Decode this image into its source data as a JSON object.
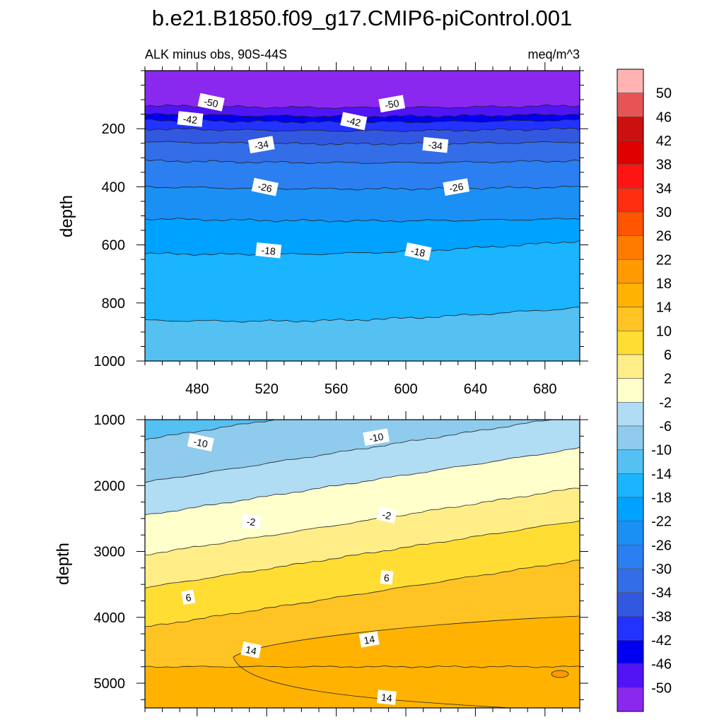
{
  "title": "b.e21.B1850.f09_g17.CMIP6-piControl.001",
  "chart_data": [
    {
      "type": "contour",
      "panel": "upper",
      "left_label": "ALK minus obs, 90S-44S",
      "right_label": "meq/m^3",
      "ylabel": "depth",
      "xlabel": "",
      "xlim": [
        450,
        700
      ],
      "ylim": [
        0,
        1000
      ],
      "y_inverted": true,
      "xticks": [
        480,
        520,
        560,
        600,
        640,
        680
      ],
      "yticks": [
        200,
        400,
        600,
        800,
        1000
      ],
      "contours": [
        {
          "level": -50,
          "depth": 120
        },
        {
          "level": -46,
          "depth": 150
        },
        {
          "level": -42,
          "depth": 170
        },
        {
          "level": -38,
          "depth": 200
        },
        {
          "level": -34,
          "depth": 245
        },
        {
          "level": -30,
          "depth": 310
        },
        {
          "level": -26,
          "depth": 400
        },
        {
          "level": -22,
          "depth": 510
        },
        {
          "level": -18,
          "depth": 630
        },
        {
          "level": -14,
          "depth": 860
        }
      ],
      "labels": [
        {
          "text": "-50",
          "x": 488,
          "y": 110
        },
        {
          "text": "-50",
          "x": 592,
          "y": 115
        },
        {
          "text": "-42",
          "x": 476,
          "y": 168
        },
        {
          "text": "-42",
          "x": 570,
          "y": 175
        },
        {
          "text": "-34",
          "x": 517,
          "y": 256
        },
        {
          "text": "-34",
          "x": 617,
          "y": 257
        },
        {
          "text": "-26",
          "x": 519,
          "y": 402
        },
        {
          "text": "-26",
          "x": 629,
          "y": 402
        },
        {
          "text": "-18",
          "x": 521,
          "y": 620
        },
        {
          "text": "-18",
          "x": 607,
          "y": 624
        }
      ]
    },
    {
      "type": "contour",
      "panel": "lower",
      "ylabel": "depth",
      "xlabel": "",
      "xlim": [
        450,
        700
      ],
      "ylim": [
        1000,
        5375
      ],
      "y_inverted": true,
      "yticks": [
        1000,
        2000,
        3000,
        4000,
        5000
      ],
      "contours": [
        {
          "level": -10,
          "depth": 1300
        },
        {
          "level": -6,
          "depth": 1950
        },
        {
          "level": -2,
          "depth": 2450
        },
        {
          "level": 2,
          "depth": 3050
        },
        {
          "level": 6,
          "depth": 3550
        },
        {
          "level": 10,
          "depth": 4150
        },
        {
          "level": 14,
          "depth": 4750
        }
      ],
      "labels": [
        {
          "text": "-10",
          "x": 482,
          "y": 1350
        },
        {
          "text": "-10",
          "x": 583,
          "y": 1270
        },
        {
          "text": "-2",
          "x": 511,
          "y": 2550
        },
        {
          "text": "-2",
          "x": 589,
          "y": 2450
        },
        {
          "text": "6",
          "x": 475,
          "y": 3700
        },
        {
          "text": "6",
          "x": 589,
          "y": 3400
        },
        {
          "text": "14",
          "x": 511,
          "y": 4500
        },
        {
          "text": "14",
          "x": 579,
          "y": 4340
        },
        {
          "text": "14",
          "x": 589,
          "y": 5220
        }
      ]
    }
  ],
  "colorbar": {
    "labels": [
      "50",
      "46",
      "42",
      "38",
      "34",
      "30",
      "26",
      "22",
      "18",
      "14",
      "10",
      "6",
      "2",
      "-2",
      "-6",
      "-10",
      "-14",
      "-18",
      "-22",
      "-26",
      "-30",
      "-34",
      "-38",
      "-42",
      "-46",
      "-50"
    ],
    "colors": [
      "#ffb3b3",
      "#e65555",
      "#cc1010",
      "#e00000",
      "#ff1414",
      "#ff2e10",
      "#ff5500",
      "#ff7b00",
      "#ff9a00",
      "#ffb300",
      "#ffc324",
      "#ffdd33",
      "#ffee88",
      "#ffffcc",
      "#b0dcf4",
      "#8ecbec",
      "#55c0f2",
      "#1ab4ff",
      "#00a2ff",
      "#1a90f5",
      "#2b7ff0",
      "#336de8",
      "#3358e0",
      "#2233ff",
      "#0000f0",
      "#5014f5",
      "#8a28f0"
    ]
  },
  "fill_colors": {
    "above_-50": "#8a28f0",
    "-50_-46": "#5014f5",
    "-46_-42": "#0000f0",
    "-42_-38": "#2233ff",
    "-38_-34": "#3358e0",
    "-34_-30": "#336de8",
    "-30_-26": "#2b7ff0",
    "-26_-22": "#1a90f5",
    "-22_-18": "#00a2ff",
    "-18_-14": "#1ab4ff",
    "-14_-10": "#55c0f2",
    "-10_-6": "#8ecbec",
    "-6_-2": "#b0dcf4",
    "-2_2": "#ffffcc",
    "2_6": "#ffee88",
    "6_10": "#ffdd33",
    "10_14": "#ffc324",
    "14_18": "#ffb300",
    "18_22": "#ff9a00"
  }
}
